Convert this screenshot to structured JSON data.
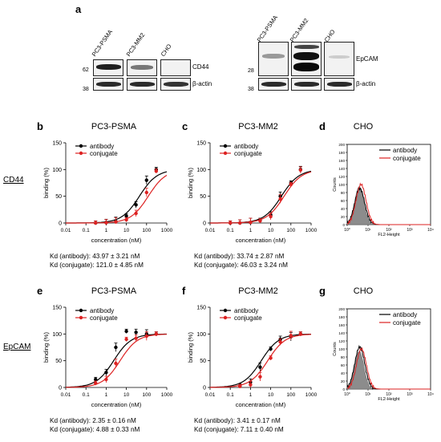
{
  "figure": {
    "panel_labels": [
      "a",
      "b",
      "c",
      "d",
      "e",
      "f",
      "g"
    ],
    "row_labels": [
      "CD44",
      "EpCAM"
    ]
  },
  "blots": {
    "left": {
      "lanes": [
        "PC3-PSMA",
        "PC3-MM2",
        "CHO"
      ],
      "markers": [
        "62",
        "38"
      ],
      "proteins": [
        "CD44",
        "β-actin"
      ]
    },
    "right": {
      "lanes": [
        "PC3-PSMA",
        "PC3-MM2",
        "CHO"
      ],
      "markers": [
        "28",
        "38"
      ],
      "proteins": [
        "EpCAM",
        "β-actin"
      ]
    }
  },
  "chart_data": [
    {
      "panel": "b",
      "type": "line",
      "title": "PC3-PSMA",
      "xlabel": "concentration (nM)",
      "ylabel": "binding (%)",
      "xscale": "log",
      "xlim": [
        0.01,
        1000
      ],
      "ylim": [
        0,
        150
      ],
      "x_ticks": [
        "0.01",
        "0.1",
        "1",
        "10",
        "100",
        "1000"
      ],
      "y_ticks": [
        "0",
        "50",
        "100",
        "150"
      ],
      "legend": "top-left",
      "series": [
        {
          "name": "antibody",
          "color": "#000000",
          "kd": 43.97,
          "x": [
            0.3,
            1,
            3,
            10,
            30,
            100,
            300
          ],
          "y": [
            0,
            1,
            3,
            13,
            34,
            80,
            100
          ]
        },
        {
          "name": "conjugate",
          "color": "#dd2222",
          "kd": 121.0,
          "x": [
            0.3,
            1,
            3,
            10,
            30,
            100,
            300
          ],
          "y": [
            0,
            0.5,
            2,
            6,
            18,
            57,
            97
          ]
        }
      ],
      "kd_text": [
        "Kd (antibody): 43.97 ± 3.21 nM",
        "Kd (conjugate): 121.0 ± 4.85 nM"
      ]
    },
    {
      "panel": "c",
      "type": "line",
      "title": "PC3-MM2",
      "xlabel": "concentration (nM)",
      "ylabel": "binding (%)",
      "xscale": "log",
      "xlim": [
        0.01,
        1000
      ],
      "ylim": [
        0,
        150
      ],
      "x_ticks": [
        "0.01",
        "0.1",
        "1",
        "10",
        "100",
        "1000"
      ],
      "y_ticks": [
        "0",
        "50",
        "100",
        "150"
      ],
      "legend": "top-left",
      "series": [
        {
          "name": "antibody",
          "color": "#000000",
          "kd": 33.74,
          "x": [
            0.1,
            0.3,
            1,
            3,
            10,
            30,
            100,
            300
          ],
          "y": [
            0,
            0,
            1,
            5,
            15,
            50,
            75,
            100
          ]
        },
        {
          "name": "conjugate",
          "color": "#dd2222",
          "kd": 46.03,
          "x": [
            0.1,
            0.3,
            1,
            3,
            10,
            30,
            100,
            300
          ],
          "y": [
            0,
            0,
            1,
            4,
            12,
            45,
            72,
            99
          ]
        }
      ],
      "kd_text": [
        "Kd (antibody): 33.74 ± 2.87 nM",
        "Kd (conjugate): 46.03 ± 3.24 nM"
      ]
    },
    {
      "panel": "d",
      "type": "area",
      "title": "CHO",
      "xlabel": "FL2-Height",
      "ylabel": "Counts",
      "xscale": "log",
      "xlim": [
        1,
        10000
      ],
      "ylim": [
        0,
        200
      ],
      "x_ticks": [
        "10⁰",
        "10¹",
        "10²",
        "10³",
        "10⁴"
      ],
      "y_ticks": [
        "0",
        "20",
        "40",
        "60",
        "80",
        "100",
        "120",
        "140",
        "160",
        "180",
        "200"
      ],
      "legend": "top-right",
      "series": [
        {
          "name": "antibody",
          "color": "#000000",
          "peak": 4.0,
          "height": 90
        },
        {
          "name": "conjugate",
          "color": "#dd2222",
          "peak": 4.6,
          "height": 100
        }
      ]
    },
    {
      "panel": "e",
      "type": "line",
      "title": "PC3-PSMA",
      "xlabel": "concentration (nM)",
      "ylabel": "binding (%)",
      "xscale": "log",
      "xlim": [
        0.01,
        1000
      ],
      "ylim": [
        0,
        150
      ],
      "x_ticks": [
        "0.01",
        "0.1",
        "1",
        "10",
        "100",
        "1000"
      ],
      "y_ticks": [
        "0",
        "50",
        "100",
        "150"
      ],
      "legend": "top-left",
      "series": [
        {
          "name": "antibody",
          "color": "#000000",
          "kd": 2.35,
          "x": [
            0.3,
            1,
            3,
            10,
            30,
            100,
            300
          ],
          "y": [
            15,
            28,
            75,
            105,
            103,
            100,
            100
          ]
        },
        {
          "name": "conjugate",
          "color": "#dd2222",
          "kd": 4.88,
          "x": [
            0.3,
            1,
            3,
            10,
            30,
            100,
            300
          ],
          "y": [
            8,
            15,
            45,
            90,
            92,
            96,
            100
          ]
        }
      ],
      "kd_text": [
        "Kd (antibody): 2.35 ± 0.16 nM",
        "Kd (conjugate): 4.88 ± 0.33 nM"
      ]
    },
    {
      "panel": "f",
      "type": "line",
      "title": "PC3-MM2",
      "xlabel": "concentration (nM)",
      "ylabel": "binding (%)",
      "xscale": "log",
      "xlim": [
        0.01,
        1000
      ],
      "ylim": [
        0,
        150
      ],
      "x_ticks": [
        "0.01",
        "0.1",
        "1",
        "10",
        "100",
        "1000"
      ],
      "y_ticks": [
        "0",
        "50",
        "100",
        "150"
      ],
      "legend": "top-left",
      "series": [
        {
          "name": "antibody",
          "color": "#000000",
          "kd": 3.41,
          "x": [
            0.3,
            1,
            3,
            10,
            30,
            100,
            300
          ],
          "y": [
            3,
            10,
            38,
            72,
            90,
            95,
            100
          ]
        },
        {
          "name": "conjugate",
          "color": "#dd2222",
          "kd": 7.11,
          "x": [
            0.3,
            1,
            3,
            10,
            30,
            100,
            300
          ],
          "y": [
            2,
            5,
            20,
            55,
            85,
            97,
            100
          ]
        }
      ],
      "kd_text": [
        "Kd (antibody): 3.41 ± 0.17 nM",
        "Kd (conjugate): 7.11 ± 0.40 nM"
      ]
    },
    {
      "panel": "g",
      "type": "area",
      "title": "CHO",
      "xlabel": "FL2-Height",
      "ylabel": "Counts",
      "xscale": "log",
      "xlim": [
        1,
        10000
      ],
      "ylim": [
        0,
        200
      ],
      "x_ticks": [
        "10⁰",
        "10¹",
        "10²",
        "10³",
        "10⁴"
      ],
      "y_ticks": [
        "0",
        "20",
        "40",
        "60",
        "80",
        "100",
        "120",
        "140",
        "160",
        "180",
        "200"
      ],
      "legend": "top-right",
      "series": [
        {
          "name": "antibody",
          "color": "#000000",
          "peak": 4.0,
          "height": 105
        },
        {
          "name": "conjugate",
          "color": "#dd2222",
          "peak": 4.8,
          "height": 100
        }
      ]
    }
  ]
}
